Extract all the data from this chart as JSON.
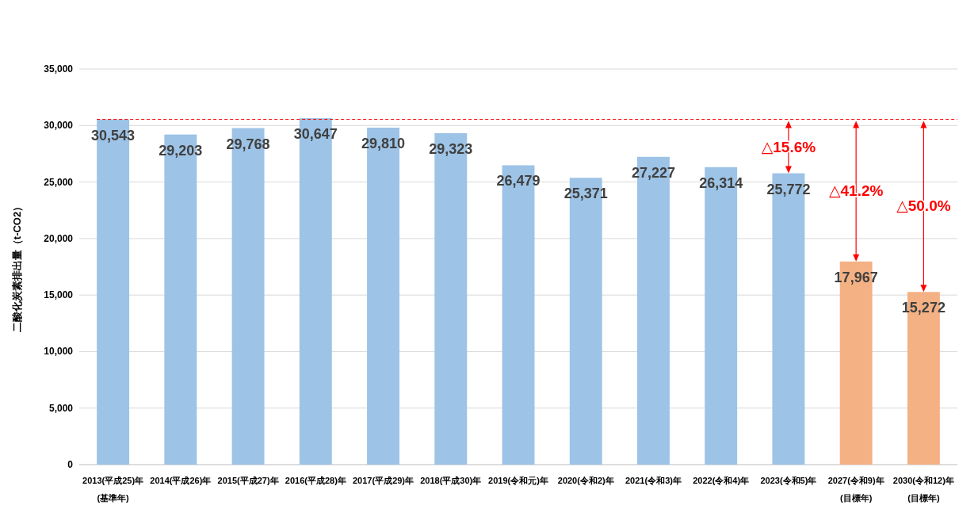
{
  "chart_data": {
    "type": "bar",
    "categories": [
      "2013(平成25)年\n(基準年)",
      "2014(平成26)年",
      "2015(平成27)年",
      "2016(平成28)年",
      "2017(平成29)年",
      "2018(平成30)年",
      "2019(令和元)年",
      "2020(令和2)年",
      "2021(令和3)年",
      "2022(令和4)年",
      "2023(令和5)年",
      "2027(令和9)年\n(目標年)",
      "2030(令和12)年\n(目標年)"
    ],
    "values": [
      30543,
      29203,
      29768,
      30647,
      29810,
      29323,
      26479,
      25371,
      27227,
      26314,
      25772,
      17967,
      15272
    ],
    "colors": [
      "#9dc3e6",
      "#9dc3e6",
      "#9dc3e6",
      "#9dc3e6",
      "#9dc3e6",
      "#9dc3e6",
      "#9dc3e6",
      "#9dc3e6",
      "#9dc3e6",
      "#9dc3e6",
      "#9dc3e6",
      "#f4b183",
      "#f4b183"
    ],
    "ylabel": "二酸化炭素排出量（t-CO2）",
    "ylim": [
      0,
      35000
    ],
    "yticks": [
      {
        "value": 0,
        "label": "0"
      },
      {
        "value": 5000,
        "label": "5,000"
      },
      {
        "value": 10000,
        "label": "10,000"
      },
      {
        "value": 15000,
        "label": "15,000"
      },
      {
        "value": 20000,
        "label": "20,000"
      },
      {
        "value": 25000,
        "label": "25,000"
      },
      {
        "value": 30000,
        "label": "30,000"
      },
      {
        "value": 35000,
        "label": "35,000"
      }
    ],
    "grid": "y",
    "value_labels": [
      "30,543",
      "29,203",
      "29,768",
      "30,647",
      "29,810",
      "29,323",
      "26,479",
      "25,371",
      "27,227",
      "26,314",
      "25,772",
      "17,967",
      "15,272"
    ],
    "ref_lines": [
      {
        "axis": "y",
        "value": 30543,
        "label": null,
        "color": "#ff0000",
        "line_style": "dashed"
      }
    ],
    "annotations": [
      "△15.6%",
      "△41.2%",
      "△50.0%"
    ]
  }
}
